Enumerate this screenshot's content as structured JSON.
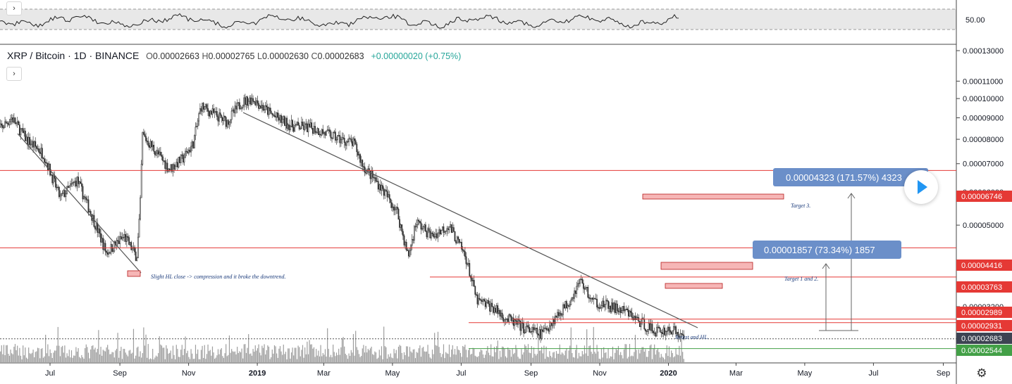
{
  "header": {
    "symbol": "XRP / Bitcoin",
    "interval": "1D",
    "exchange": "BINANCE",
    "open_label": "O",
    "open": "0.00002663",
    "high_label": "H",
    "high": "0.00002765",
    "low_label": "L",
    "low": "0.00002630",
    "close_label": "C",
    "close": "0.00002683",
    "change": "+0.00000020 (+0.75%)"
  },
  "oscillator": {
    "level_label": "50.00"
  },
  "chart_data": {
    "type": "candlestick",
    "symbol": "XRP / Bitcoin",
    "interval": "1D",
    "exchange": "BINANCE",
    "y_scale": "log",
    "ylim": [
      2.46e-05,
      0.000135
    ],
    "price_ticks": [
      "0.00013000",
      "0.00011000",
      "0.00010000",
      "0.00009000",
      "0.00008000",
      "0.00007000",
      "0.00006000",
      "0.00005000",
      "0.00004000",
      "0.00003200"
    ],
    "price_tick_values": [
      0.00013,
      0.00011,
      0.0001,
      9e-05,
      8e-05,
      7e-05,
      6e-05,
      5e-05,
      4e-05,
      3.2e-05
    ],
    "x_ticks": [
      {
        "label": "Jul",
        "month": "2018-07"
      },
      {
        "label": "Sep",
        "month": "2018-09"
      },
      {
        "label": "Nov",
        "month": "2018-11"
      },
      {
        "label": "2019",
        "month": "2019-01"
      },
      {
        "label": "Mar",
        "month": "2019-03"
      },
      {
        "label": "May",
        "month": "2019-05"
      },
      {
        "label": "Jul",
        "month": "2019-07"
      },
      {
        "label": "Sep",
        "month": "2019-09"
      },
      {
        "label": "Nov",
        "month": "2019-11"
      },
      {
        "label": "2020",
        "month": "2020-01"
      },
      {
        "label": "Mar",
        "month": "2020-03"
      },
      {
        "label": "May",
        "month": "2020-05"
      },
      {
        "label": "Jul",
        "month": "2020-07"
      },
      {
        "label": "Sep",
        "month": "2020-09"
      }
    ],
    "price_path": [
      [
        "2018-05-14",
        8.3e-05
      ],
      [
        "2018-05-28",
        9e-05
      ],
      [
        "2018-06-10",
        8e-05
      ],
      [
        "2018-06-25",
        7.4e-05
      ],
      [
        "2018-07-10",
        5.8e-05
      ],
      [
        "2018-07-25",
        6.4e-05
      ],
      [
        "2018-08-08",
        5.2e-05
      ],
      [
        "2018-08-20",
        4.3e-05
      ],
      [
        "2018-09-05",
        4.7e-05
      ],
      [
        "2018-09-16",
        4.2e-05
      ],
      [
        "2018-09-19",
        5.5e-05
      ],
      [
        "2018-09-21",
        8.2e-05
      ],
      [
        "2018-10-01",
        7.6e-05
      ],
      [
        "2018-10-15",
        6.8e-05
      ],
      [
        "2018-10-27",
        7.2e-05
      ],
      [
        "2018-11-05",
        7.8e-05
      ],
      [
        "2018-11-12",
        9.6e-05
      ],
      [
        "2018-11-20",
        9.3e-05
      ],
      [
        "2018-12-05",
        8.8e-05
      ],
      [
        "2018-12-18",
        9.8e-05
      ],
      [
        "2018-12-28",
        0.0001
      ],
      [
        "2019-01-15",
        9.1e-05
      ],
      [
        "2019-02-01",
        8.6e-05
      ],
      [
        "2019-02-20",
        8.5e-05
      ],
      [
        "2019-03-10",
        8.1e-05
      ],
      [
        "2019-03-28",
        7.8e-05
      ],
      [
        "2019-04-05",
        6.9e-05
      ],
      [
        "2019-04-20",
        6.2e-05
      ],
      [
        "2019-05-05",
        5.4e-05
      ],
      [
        "2019-05-15",
        4.2e-05
      ],
      [
        "2019-05-22",
        5.1e-05
      ],
      [
        "2019-06-05",
        4.7e-05
      ],
      [
        "2019-06-20",
        5e-05
      ],
      [
        "2019-07-05",
        4.2e-05
      ],
      [
        "2019-07-15",
        3.3e-05
      ],
      [
        "2019-07-28",
        3.2e-05
      ],
      [
        "2019-08-10",
        3e-05
      ],
      [
        "2019-08-25",
        2.85e-05
      ],
      [
        "2019-09-10",
        2.75e-05
      ],
      [
        "2019-09-22",
        3e-05
      ],
      [
        "2019-10-05",
        3.3e-05
      ],
      [
        "2019-10-15",
        3.7e-05
      ],
      [
        "2019-10-25",
        3.3e-05
      ],
      [
        "2019-11-10",
        3.2e-05
      ],
      [
        "2019-11-25",
        3.1e-05
      ],
      [
        "2019-12-10",
        2.9e-05
      ],
      [
        "2019-12-20",
        2.8e-05
      ],
      [
        "2020-01-05",
        2.82e-05
      ],
      [
        "2020-01-15",
        2.68e-05
      ]
    ],
    "horizontal_levels": [
      {
        "value": 6.746e-05,
        "label": "0.00006746",
        "color": "#e53935"
      },
      {
        "value": 4.416e-05,
        "label": "0.00004416",
        "color": "#e53935"
      },
      {
        "value": 3.763e-05,
        "label": "0.00003763",
        "color": "#e53935"
      },
      {
        "value": 2.989e-05,
        "label": "0.00002989",
        "color": "#e53935"
      },
      {
        "value": 2.931e-05,
        "label": "0.00002931",
        "color": "#e53935"
      },
      {
        "value": 2.683e-05,
        "label": "0.00002683",
        "color": "#3d4352"
      },
      {
        "value": 2.544e-05,
        "label": "0.00002544",
        "color": "#43a047"
      }
    ],
    "measurements": [
      {
        "label": "0.00004323 (171.57%) 4323"
      },
      {
        "label": "0.00001857 (73.34%) 1857"
      }
    ],
    "annotations": [
      "Target 3.",
      "Target 1 and 2.",
      "Slight HL close -> compression and it broke the downtrend.",
      "Retest and HL."
    ],
    "colors": {
      "up": "#4a4a4a",
      "level": "#e53935",
      "support": "#43a047",
      "trend": "#555555",
      "zone": "#f6b6b6",
      "measure": "#6b8fc9"
    }
  }
}
